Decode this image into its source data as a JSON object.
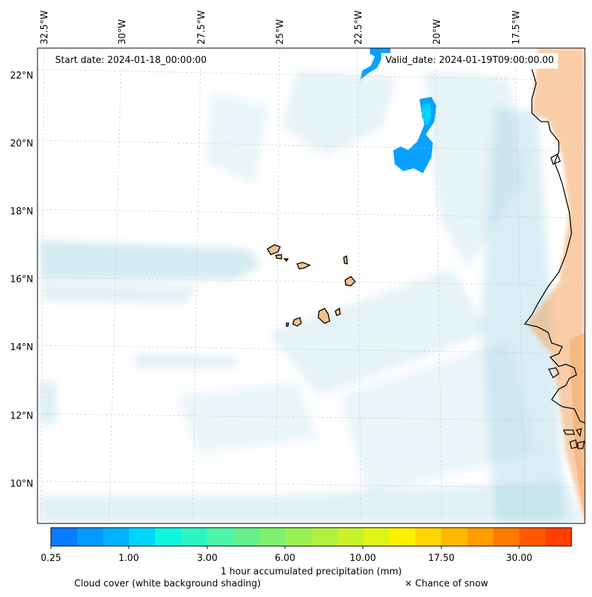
{
  "title_left": "Start date: 2024-01-18_00:00:00",
  "title_right": "Valid_date: 2024-01-19T09:00:00.00",
  "lon_labels": [
    "32.5°W",
    "30°W",
    "27.5°W",
    "25°W",
    "22.5°W",
    "20°W",
    "17.5°W"
  ],
  "lat_labels": [
    "22°N",
    "20°N",
    "18°N",
    "16°N",
    "14°N",
    "12°N",
    "10°N"
  ],
  "colorbar": {
    "ticks": [
      "0.25",
      "1.00",
      "3.00",
      "6.00",
      "10.00",
      "17.50",
      "30.00"
    ],
    "colors": [
      "#0a7cff",
      "#0599ff",
      "#00b3ff",
      "#00d4ff",
      "#10f5e0",
      "#2cf5c2",
      "#4cf5a7",
      "#66f08a",
      "#7ef26c",
      "#98f154",
      "#b0f03f",
      "#c8f22a",
      "#e0f416",
      "#fff000",
      "#ffd400",
      "#ffb800",
      "#ff9c00",
      "#ff7a00",
      "#ff5a00",
      "#ff3e00"
    ],
    "label": "1 hour accumulated precipitation (mm)"
  },
  "legend": {
    "cloud": "Cloud cover (white background shading)",
    "snow": "× Chance of snow"
  },
  "colors": {
    "cloud": "#add8e6",
    "land": "#f4a460",
    "coast": "#000000",
    "grid": "#bbbbbb"
  }
}
